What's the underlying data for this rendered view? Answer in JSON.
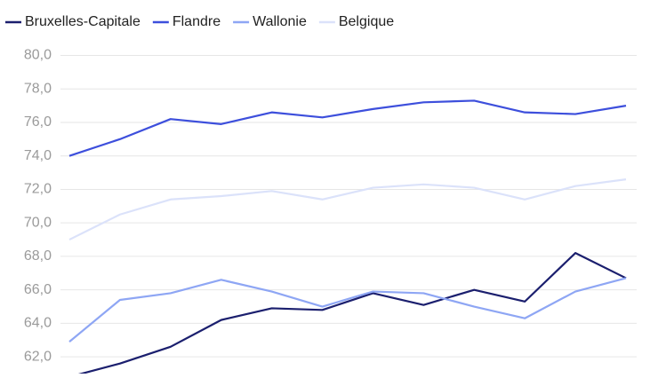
{
  "chart_data": {
    "type": "line",
    "categories": [
      null,
      null,
      null,
      null,
      null,
      null,
      null,
      null,
      null,
      null,
      null,
      null
    ],
    "series": [
      {
        "name": "Bruxelles-Capitale",
        "color": "#1b1f6e",
        "values": [
          60.8,
          61.6,
          62.6,
          64.2,
          64.9,
          64.8,
          65.8,
          65.1,
          66.0,
          65.3,
          68.2,
          66.7
        ]
      },
      {
        "name": "Flandre",
        "color": "#3d4fdc",
        "values": [
          74.0,
          75.0,
          76.2,
          75.9,
          76.6,
          76.3,
          76.8,
          77.2,
          77.3,
          76.6,
          76.5,
          77.0
        ]
      },
      {
        "name": "Wallonie",
        "color": "#8ea6f4",
        "values": [
          62.9,
          65.4,
          65.8,
          66.6,
          65.9,
          65.0,
          65.9,
          65.8,
          65.0,
          64.3,
          65.9,
          66.7
        ]
      },
      {
        "name": "Belgique",
        "color": "#dbe2fa",
        "values": [
          69.0,
          70.5,
          71.4,
          71.6,
          71.9,
          71.4,
          72.1,
          72.3,
          72.1,
          71.4,
          72.2,
          72.6
        ]
      }
    ],
    "ylim": [
      61,
      80
    ],
    "yticks": [
      {
        "value": 62,
        "label": "62,0"
      },
      {
        "value": 64,
        "label": "64,0"
      },
      {
        "value": 66,
        "label": "66,0"
      },
      {
        "value": 68,
        "label": "68,0"
      },
      {
        "value": 70,
        "label": "70,0"
      },
      {
        "value": 72,
        "label": "72,0"
      },
      {
        "value": 74,
        "label": "74,0"
      },
      {
        "value": 76,
        "label": "76,0"
      },
      {
        "value": 78,
        "label": "78,0"
      },
      {
        "value": 80,
        "label": "80,0"
      }
    ],
    "grid": true,
    "legend": "top"
  }
}
